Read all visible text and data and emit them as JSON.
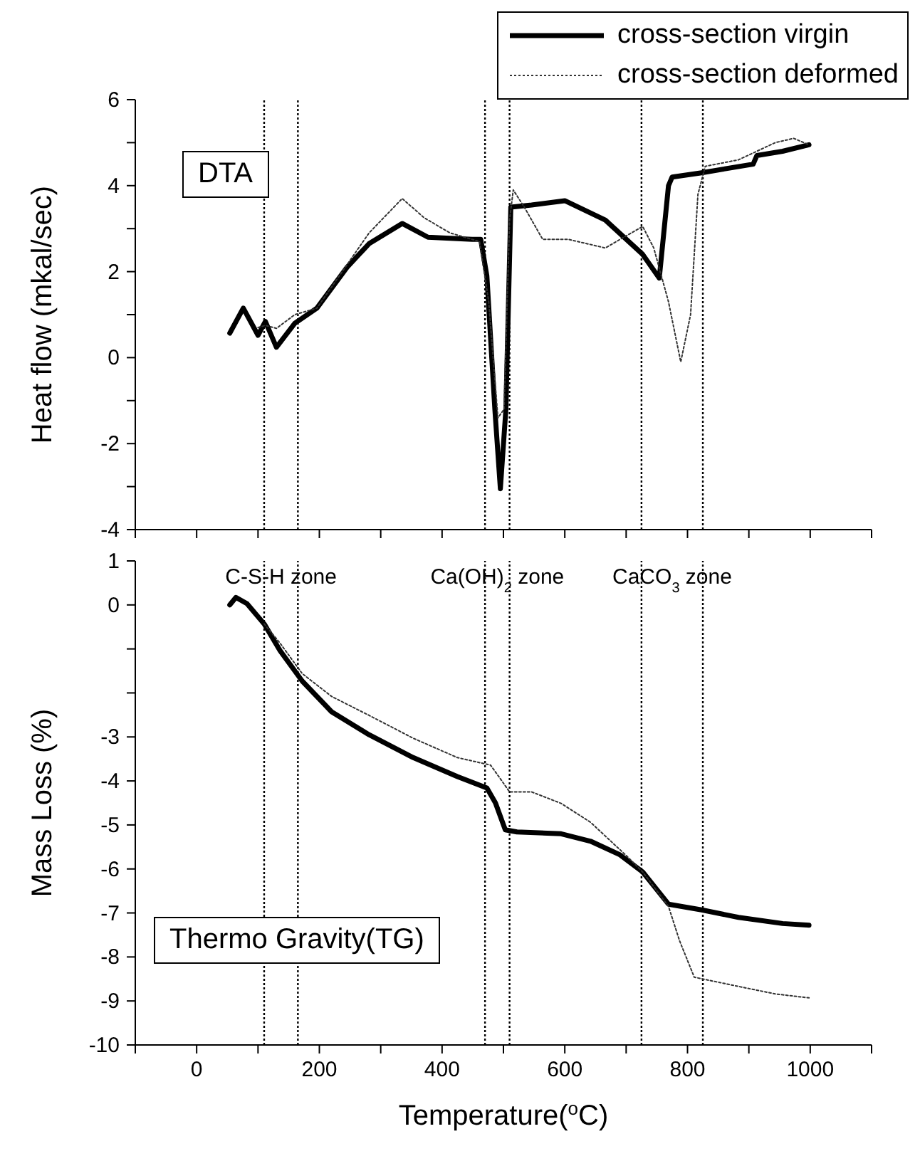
{
  "chart_data": [
    {
      "type": "line",
      "ylabel": "Heat flow (mkal/sec)",
      "xlim": [
        -100,
        1100
      ],
      "xticks": [
        {
          "value": -100,
          "label": null
        },
        {
          "value": 0,
          "label": null
        },
        {
          "value": 100,
          "label": null
        },
        {
          "value": 200,
          "label": null
        },
        {
          "value": 300,
          "label": null
        },
        {
          "value": 400,
          "label": null
        },
        {
          "value": 500,
          "label": null
        },
        {
          "value": 600,
          "label": null
        },
        {
          "value": 700,
          "label": null
        },
        {
          "value": 800,
          "label": null
        },
        {
          "value": 900,
          "label": null
        },
        {
          "value": 1000,
          "label": null
        },
        {
          "value": 1100,
          "label": null
        }
      ],
      "ylim": [
        -4,
        6
      ],
      "yticks": [
        -4,
        {
          "value": -3,
          "label": null
        },
        -2,
        {
          "value": -1,
          "label": null
        },
        0,
        {
          "value": 1,
          "label": null
        },
        2,
        {
          "value": 3,
          "label": null
        },
        4,
        {
          "value": 5,
          "label": null
        },
        6
      ],
      "tick_labels": "y",
      "legend": "top right",
      "series": [
        {
          "name": "cross-section virgin",
          "color": "#000000",
          "line_style": "solid",
          "x": [
            54,
            76,
            100,
            112,
            130,
            160,
            196,
            245,
            281,
            335,
            377,
            449,
            463,
            473,
            486,
            495,
            504,
            512,
            546,
            600,
            666,
            727,
            754,
            769,
            775,
            823,
            907,
            913,
            955,
            998
          ],
          "values": [
            0.57,
            1.15,
            0.52,
            0.84,
            0.24,
            0.8,
            1.15,
            2.1,
            2.65,
            3.12,
            2.8,
            2.75,
            2.75,
            1.9,
            -1.2,
            -3.05,
            -1.2,
            3.5,
            3.55,
            3.65,
            3.2,
            2.4,
            1.85,
            4.0,
            4.2,
            4.3,
            4.5,
            4.7,
            4.8,
            4.95
          ]
        },
        {
          "name": "cross-section deformed",
          "color": "#333333",
          "line_style": "dotted",
          "x": [
            100,
            112,
            130,
            160,
            196,
            281,
            335,
            371,
            413,
            461,
            476,
            491,
            501,
            510,
            516,
            534,
            564,
            606,
            666,
            696,
            727,
            745,
            769,
            789,
            805,
            817,
            829,
            883,
            943,
            973,
            998
          ],
          "values": [
            0.7,
            0.75,
            0.68,
            1.0,
            1.15,
            2.9,
            3.7,
            3.25,
            2.9,
            2.7,
            1.3,
            -1.4,
            -1.2,
            3.2,
            3.9,
            3.5,
            2.75,
            2.75,
            2.55,
            2.8,
            3.05,
            2.55,
            1.3,
            -0.1,
            1.0,
            3.8,
            4.45,
            4.6,
            5.0,
            5.1,
            4.95
          ]
        }
      ],
      "ref_lines": [
        {
          "axis": "x",
          "value": 110,
          "line_style": "dotted"
        },
        {
          "axis": "x",
          "value": 165,
          "line_style": "dotted"
        },
        {
          "axis": "x",
          "value": 470,
          "line_style": "dotted"
        },
        {
          "axis": "x",
          "value": 510,
          "line_style": "dotted"
        },
        {
          "axis": "x",
          "value": 725,
          "line_style": "dotted"
        },
        {
          "axis": "x",
          "value": 825,
          "line_style": "dotted"
        }
      ],
      "annotations": [
        "DTA"
      ]
    },
    {
      "type": "line",
      "ylabel": "Mass Loss (%)",
      "xlabel": "Temperature($^{o}$C)",
      "xlim": [
        -100,
        1100
      ],
      "xticks": [
        {
          "value": -100,
          "label": null
        },
        0,
        {
          "value": 100,
          "label": null
        },
        200,
        {
          "value": 300,
          "label": null
        },
        400,
        {
          "value": 500,
          "label": null
        },
        600,
        {
          "value": 700,
          "label": null
        },
        800,
        {
          "value": 900,
          "label": null
        },
        1000,
        {
          "value": 1100,
          "label": null
        }
      ],
      "ylim": [
        -10,
        1
      ],
      "yticks": [
        -10,
        -9,
        -8,
        -7,
        -6,
        -5,
        -4,
        -3,
        {
          "value": -2,
          "label": null
        },
        {
          "value": -1,
          "label": null
        },
        0,
        1
      ],
      "series": [
        {
          "color": "#000000",
          "line_style": "solid",
          "x": [
            54,
            64,
            82,
            110,
            136,
            172,
            220,
            281,
            353,
            425,
            473,
            487,
            503,
            522,
            594,
            642,
            690,
            727,
            769,
            823,
            883,
            955,
            998
          ],
          "values": [
            0,
            0.17,
            0.03,
            -0.43,
            -1.04,
            -1.73,
            -2.43,
            -2.95,
            -3.47,
            -3.9,
            -4.16,
            -4.5,
            -5.11,
            -5.16,
            -5.2,
            -5.37,
            -5.68,
            -6.07,
            -6.8,
            -6.93,
            -7.1,
            -7.24,
            -7.28
          ]
        },
        {
          "color": "#333333",
          "line_style": "dotted",
          "x": [
            110,
            136,
            172,
            220,
            281,
            353,
            425,
            479,
            497,
            510,
            546,
            594,
            642,
            702,
            727,
            769,
            787,
            811,
            883,
            943,
            998
          ],
          "values": [
            -0.43,
            -0.87,
            -1.56,
            -2.08,
            -2.51,
            -3.03,
            -3.47,
            -3.64,
            -3.99,
            -4.25,
            -4.25,
            -4.51,
            -4.94,
            -5.72,
            -6.07,
            -6.85,
            -7.63,
            -8.46,
            -8.67,
            -8.84,
            -8.93
          ]
        }
      ],
      "ref_lines": [
        {
          "axis": "x",
          "value": 110,
          "label": "C-S-H zone",
          "line_style": "dotted"
        },
        {
          "axis": "x",
          "value": 165,
          "line_style": "dotted"
        },
        {
          "axis": "x",
          "value": 470,
          "label": "Ca(OH)$_{2}$ zone",
          "line_style": "dotted"
        },
        {
          "axis": "x",
          "value": 510,
          "line_style": "dotted"
        },
        {
          "axis": "x",
          "value": 725,
          "label": "CaCO$_{3}$ zone",
          "line_style": "dotted"
        },
        {
          "axis": "x",
          "value": 825,
          "line_style": "dotted"
        }
      ],
      "annotations": [
        "Thermo Gravity(TG)"
      ]
    }
  ]
}
